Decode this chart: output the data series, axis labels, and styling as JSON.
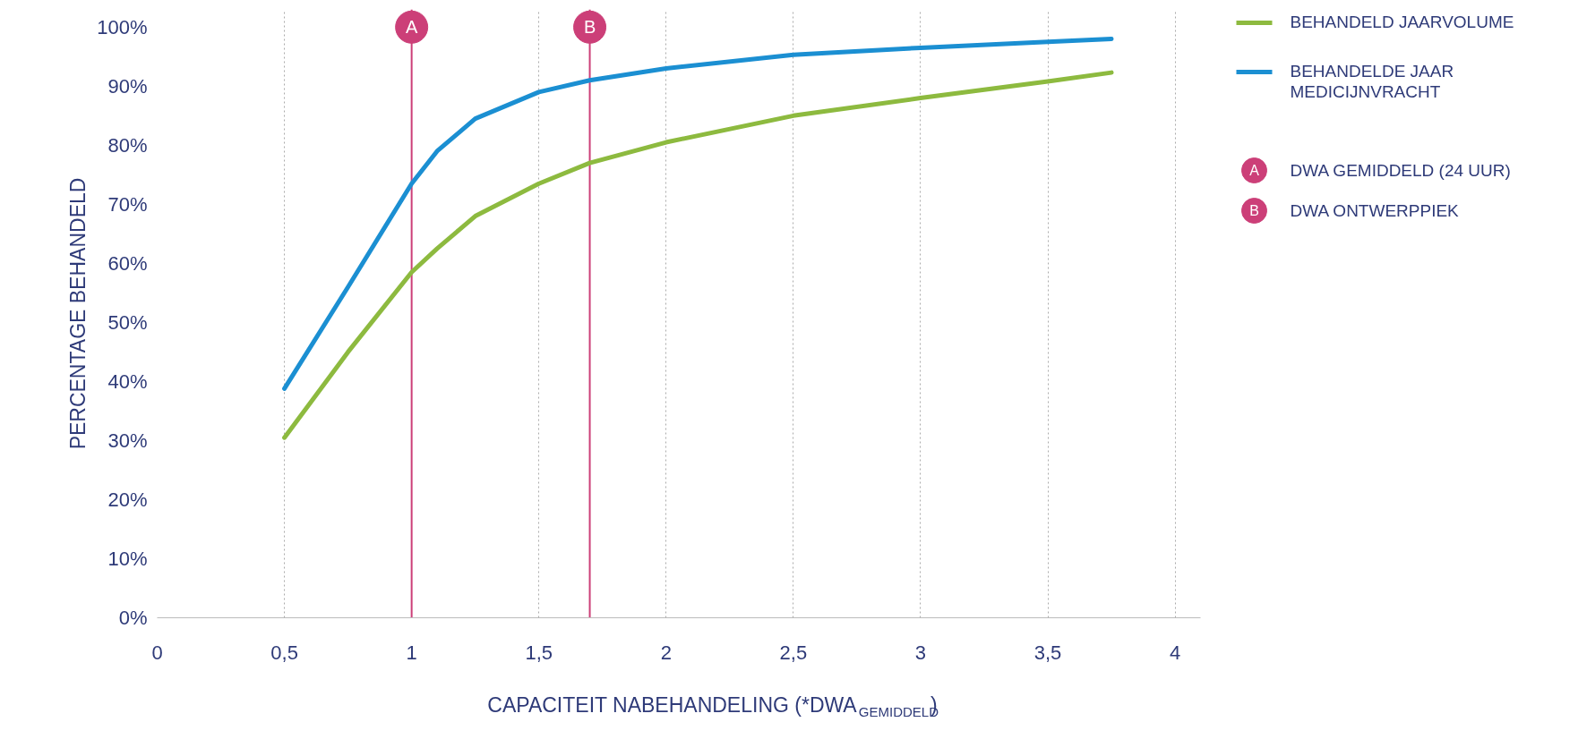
{
  "chart_data": {
    "type": "line",
    "xlabel": "CAPACITEIT NABEHANDELING (*DWA$_{GEMIDDELD}$)",
    "ylabel": "PERCENTAGE BEHANDELD",
    "x": [
      0.5,
      0.75,
      1.0,
      1.1,
      1.25,
      1.5,
      1.7,
      2.0,
      2.5,
      3.0,
      3.5,
      3.75
    ],
    "series": [
      {
        "name": "BEHANDELD JAARVOLUME",
        "color": "#8dba3f",
        "values": [
          30.5,
          45,
          58.5,
          62.5,
          68,
          73.5,
          77,
          80.5,
          85,
          88,
          90.8,
          92.3
        ]
      },
      {
        "name": "BEHANDELDE JAAR MEDICIJNVRACHT",
        "color": "#1b8fd2",
        "values": [
          38.8,
          56,
          73.5,
          79,
          84.5,
          89,
          91,
          93,
          95.3,
          96.5,
          97.5,
          98
        ]
      }
    ],
    "ref_lines": [
      {
        "axis": "x",
        "value": 1.0,
        "label": "A",
        "color": "#cc3f78"
      },
      {
        "axis": "x",
        "value": 1.7,
        "label": "B",
        "color": "#cc3f78"
      }
    ],
    "annotations": [
      "DWA GEMIDDELD (24 UUR)",
      "DWA ONTWERPPIEK"
    ],
    "xlim": [
      0,
      4.1
    ],
    "ylim": [
      0,
      103
    ],
    "xticks": [
      0,
      {
        "value": 0.5,
        "label": "0,5"
      },
      1,
      {
        "value": 1.5,
        "label": "1,5"
      },
      2,
      {
        "value": 2.5,
        "label": "2,5"
      },
      3,
      {
        "value": 3.5,
        "label": "3,5"
      },
      4
    ],
    "yticks": [
      {
        "value": 0,
        "label": "0%"
      },
      {
        "value": 10,
        "label": "10%"
      },
      {
        "value": 20,
        "label": "20%"
      },
      {
        "value": 30,
        "label": "30%"
      },
      {
        "value": 40,
        "label": "40%"
      },
      {
        "value": 50,
        "label": "50%"
      },
      {
        "value": 60,
        "label": "60%"
      },
      {
        "value": 70,
        "label": "70%"
      },
      {
        "value": 80,
        "label": "80%"
      },
      {
        "value": 90,
        "label": "90%"
      },
      {
        "value": 100,
        "label": "100%"
      }
    ],
    "grid": "x",
    "legend": "right",
    "line_style": "solid",
    "marker": "none"
  }
}
